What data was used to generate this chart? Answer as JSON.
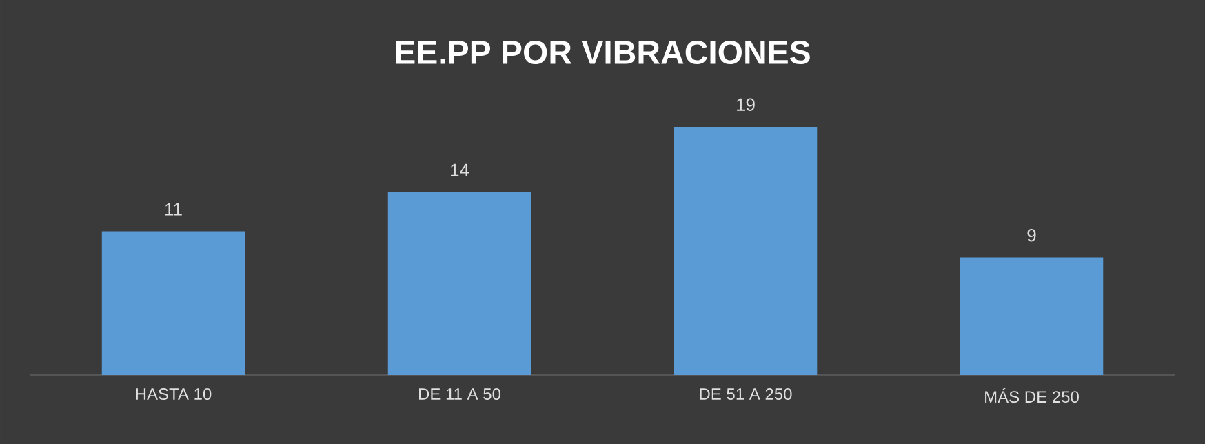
{
  "chart_data": {
    "type": "bar",
    "title": "EE.PP POR VIBRACIONES",
    "categories": [
      "HASTA 10",
      "DE 11 A 50",
      "DE 51 A 250",
      "MÁS DE 250"
    ],
    "values": [
      11,
      14,
      19,
      9
    ],
    "color": "#5b9bd5",
    "data_labels": true
  }
}
